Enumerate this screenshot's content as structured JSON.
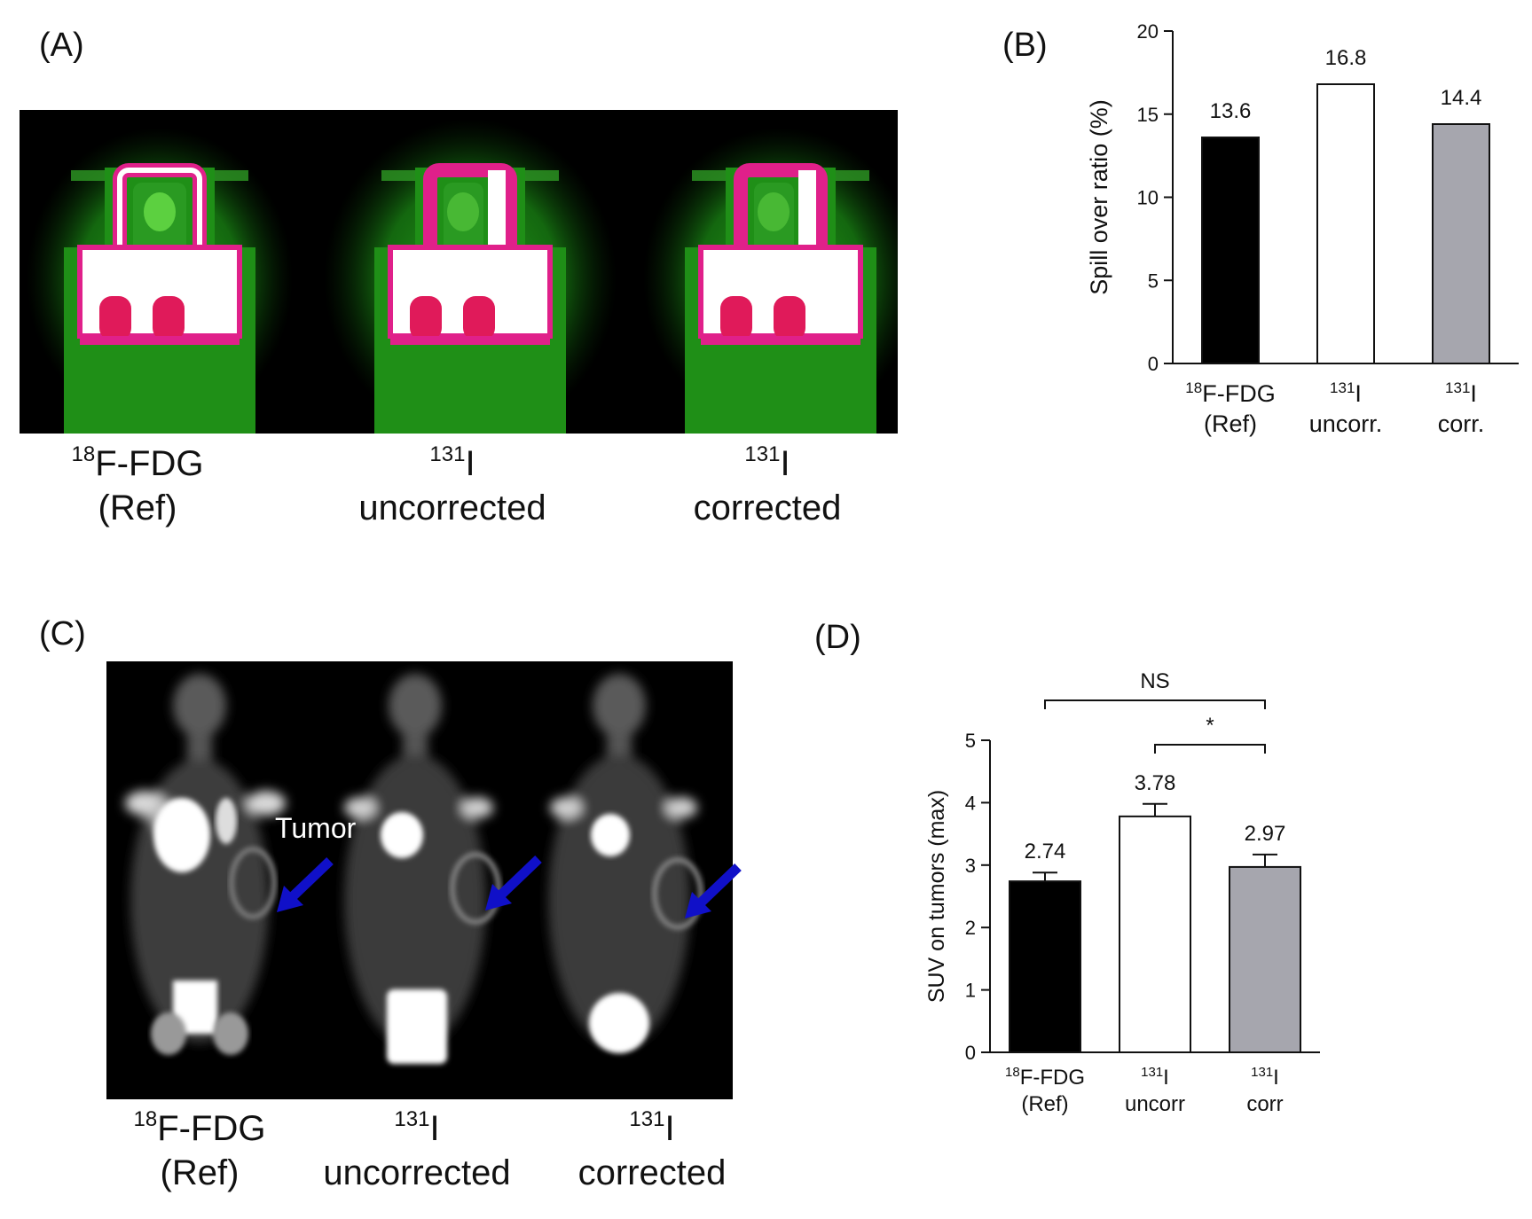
{
  "panels": {
    "a": {
      "label": "(A)"
    },
    "b": {
      "label": "(B)"
    },
    "c": {
      "label": "(C)"
    },
    "d": {
      "label": "(D)"
    }
  },
  "captions_a": [
    {
      "sup": "18",
      "main": "F-FDG",
      "line2": "(Ref)"
    },
    {
      "sup": "131",
      "main": "I",
      "line2": "uncorrected"
    },
    {
      "sup": "131",
      "main": "I",
      "line2": "corrected"
    }
  ],
  "captions_c": [
    {
      "sup": "18",
      "main": "F-FDG",
      "line2": "(Ref)"
    },
    {
      "sup": "131",
      "main": "I",
      "line2": "uncorrected"
    },
    {
      "sup": "131",
      "main": "I",
      "line2": "corrected"
    }
  ],
  "tumor_label": "Tumor",
  "colors": {
    "black_bar": "#000000",
    "white_bar": "#ffffff",
    "gray_bar": "#a6a6ae",
    "arrow": "#1010c8"
  },
  "chart_data": [
    {
      "type": "bar",
      "panel": "B",
      "ylabel": "Spill over ratio (%)",
      "ylim": [
        0,
        20
      ],
      "yticks": [
        "0",
        "5",
        "10",
        "15",
        "20"
      ],
      "categories": [
        {
          "sup": "18",
          "main": "F-FDG",
          "line2": "(Ref)"
        },
        {
          "sup": "131",
          "main": "I",
          "line2": "uncorr."
        },
        {
          "sup": "131",
          "main": "I",
          "line2": "corr."
        }
      ],
      "values": [
        13.6,
        16.8,
        14.4
      ],
      "value_labels": [
        "13.6",
        "16.8",
        "14.4"
      ],
      "bar_colors": [
        "#000000",
        "#ffffff",
        "#a6a6ae"
      ]
    },
    {
      "type": "bar",
      "panel": "D",
      "ylabel": "SUV on tumors (max)",
      "ylim": [
        0,
        5
      ],
      "yticks": [
        "0",
        "1",
        "2",
        "3",
        "4",
        "5"
      ],
      "categories": [
        {
          "sup": "18",
          "main": "F-FDG",
          "line2": "(Ref)"
        },
        {
          "sup": "131",
          "main": "I",
          "line2": "uncorr"
        },
        {
          "sup": "131",
          "main": "I",
          "line2": "corr"
        }
      ],
      "values": [
        2.74,
        3.78,
        2.97
      ],
      "errors": [
        0.14,
        0.2,
        0.2
      ],
      "value_labels": [
        "2.74",
        "3.78",
        "2.97"
      ],
      "bar_colors": [
        "#000000",
        "#ffffff",
        "#a6a6ae"
      ],
      "significance": [
        {
          "from": 0,
          "to": 2,
          "label": "NS"
        },
        {
          "from": 1,
          "to": 2,
          "label": "*"
        }
      ]
    }
  ]
}
